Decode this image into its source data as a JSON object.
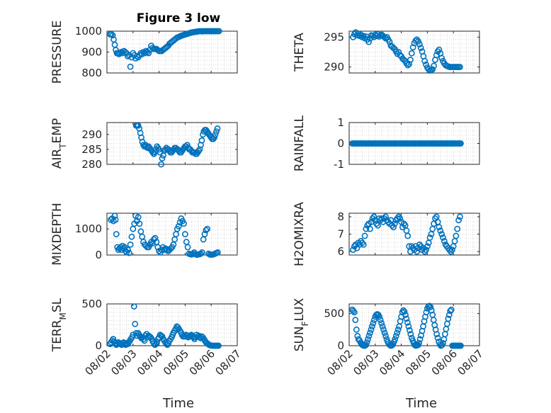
{
  "figure": {
    "title": "Figure 3 low",
    "color": "#0072BD"
  },
  "x_axis": {
    "label": "Time",
    "ticks": [
      0,
      1,
      2,
      3,
      4,
      5
    ],
    "tick_labels": [
      "08/02",
      "08/03",
      "08/04",
      "08/05",
      "08/06",
      "08/07"
    ],
    "unit": "days",
    "xlim": [
      0,
      5
    ]
  },
  "chart_data": [
    {
      "type": "scatter",
      "ylabel": "PRESSURE",
      "ylim": [
        800,
        1000
      ],
      "yticks": [
        800,
        900,
        1000
      ],
      "grid": true,
      "x": [
        0.12,
        0.17,
        0.22,
        0.26,
        0.3,
        0.34,
        0.38,
        0.42,
        0.46,
        0.5,
        0.55,
        0.6,
        0.65,
        0.7,
        0.75,
        0.8,
        0.85,
        0.9,
        0.95,
        1.0,
        1.05,
        1.1,
        1.15,
        1.2,
        1.25,
        1.3,
        1.35,
        1.4,
        1.45,
        1.5,
        1.55,
        1.6,
        1.65,
        1.7,
        1.75,
        1.8,
        1.85,
        1.9,
        1.95,
        2.0,
        2.05,
        2.1,
        2.15,
        2.2,
        2.25,
        2.3,
        2.35,
        2.4,
        2.45,
        2.5,
        2.55,
        2.6,
        2.65,
        2.7,
        2.75,
        2.8,
        2.85,
        2.9,
        2.95,
        3.0,
        3.05,
        3.1,
        3.15,
        3.2,
        3.25,
        3.3,
        3.35,
        3.4,
        3.45,
        3.5,
        3.55,
        3.6,
        3.65,
        3.7,
        3.75,
        3.8,
        3.85,
        3.9,
        3.95,
        4.0,
        4.05,
        4.1,
        4.15,
        4.2,
        4.25,
        4.3
      ],
      "y": [
        985,
        985,
        980,
        960,
        935,
        910,
        895,
        895,
        890,
        895,
        900,
        895,
        905,
        900,
        895,
        880,
        885,
        830,
        875,
        895,
        885,
        870,
        880,
        875,
        885,
        895,
        890,
        900,
        895,
        905,
        900,
        895,
        910,
        930,
        920,
        915,
        915,
        915,
        910,
        905,
        905,
        905,
        910,
        915,
        920,
        925,
        930,
        940,
        945,
        950,
        955,
        960,
        965,
        970,
        972,
        975,
        978,
        980,
        982,
        984,
        986,
        988,
        990,
        992,
        994,
        995,
        996,
        997,
        998,
        999,
        1000,
        1000,
        999,
        1000,
        1000,
        1000,
        1000,
        1000,
        1000,
        1000,
        1000,
        1000,
        1000,
        1000,
        1000,
        1000
      ]
    },
    {
      "type": "scatter",
      "ylabel": "THETA",
      "ylim": [
        289,
        296
      ],
      "yticks": [
        290,
        295
      ],
      "grid": true,
      "x": [
        0.15,
        0.2,
        0.25,
        0.3,
        0.35,
        0.4,
        0.45,
        0.5,
        0.55,
        0.6,
        0.65,
        0.7,
        0.75,
        0.8,
        0.85,
        0.9,
        0.95,
        1.0,
        1.05,
        1.1,
        1.15,
        1.2,
        1.25,
        1.3,
        1.35,
        1.4,
        1.45,
        1.5,
        1.55,
        1.6,
        1.65,
        1.7,
        1.75,
        1.8,
        1.85,
        1.9,
        1.95,
        2.0,
        2.05,
        2.1,
        2.15,
        2.2,
        2.25,
        2.3,
        2.35,
        2.4,
        2.45,
        2.5,
        2.55,
        2.6,
        2.65,
        2.7,
        2.75,
        2.8,
        2.85,
        2.9,
        2.95,
        3.0,
        3.05,
        3.1,
        3.15,
        3.2,
        3.25,
        3.3,
        3.35,
        3.4,
        3.45,
        3.5,
        3.55,
        3.6,
        3.65,
        3.7,
        3.75,
        3.8,
        3.85,
        3.9,
        3.95,
        4.0,
        4.05,
        4.1,
        4.15,
        4.2,
        4.25
      ],
      "y": [
        295,
        295.5,
        295.8,
        295.3,
        295.6,
        295.2,
        295.4,
        295,
        295.2,
        294.8,
        295.1,
        294.6,
        294.2,
        294.8,
        295.3,
        295.2,
        295,
        295.4,
        295.2,
        295.5,
        295.1,
        295.3,
        295.4,
        295.2,
        295,
        294.8,
        295,
        294.6,
        294.2,
        293.6,
        293.4,
        293.2,
        293,
        292.6,
        292.2,
        292.5,
        292,
        291.8,
        291.4,
        291.2,
        291,
        290.6,
        290.3,
        290.5,
        291.2,
        292.3,
        293.3,
        294,
        294.4,
        294.6,
        294.3,
        293.8,
        293.2,
        292.6,
        291.8,
        291,
        290.4,
        289.9,
        289.6,
        289.4,
        289.5,
        289.6,
        290.2,
        291.2,
        292,
        292.6,
        292.9,
        292.3,
        291.5,
        291,
        290.6,
        290.3,
        290.2,
        290.1,
        290,
        290,
        290,
        290,
        290,
        290,
        290,
        290,
        290
      ],
      "note_x_range_days": "series plotted through about 08/06"
    },
    {
      "type": "scatter",
      "ylabel": "AIR_TEMP",
      "ylim": [
        280,
        294
      ],
      "yticks": [
        280,
        285,
        290
      ],
      "grid": true,
      "x": [
        0.12,
        0.16,
        0.2,
        0.24,
        0.28,
        0.32,
        0.36,
        0.4,
        0.44,
        0.48,
        0.52,
        0.56,
        0.6,
        0.64,
        0.68,
        0.72,
        0.76,
        0.8,
        0.84,
        0.88,
        0.92,
        0.96,
        1.0,
        1.04,
        1.08,
        1.12,
        1.16,
        1.2,
        1.24,
        1.28,
        1.32,
        1.36,
        1.4,
        1.44,
        1.48,
        1.52,
        1.56,
        1.6,
        1.64,
        1.68,
        1.72,
        1.76,
        1.8,
        1.84,
        1.88,
        1.92,
        1.96,
        2.0,
        2.04,
        2.08,
        2.12,
        2.16,
        2.2,
        2.24,
        2.28,
        2.32,
        2.36,
        2.4,
        2.44,
        2.48,
        2.52,
        2.56,
        2.6,
        2.64,
        2.68,
        2.72,
        2.76,
        2.8,
        2.84,
        2.88,
        2.92,
        2.96,
        3.0,
        3.04,
        3.08,
        3.12,
        3.16,
        3.2,
        3.24
      ],
      "y": [
        293,
        293,
        293,
        292,
        290.5,
        289,
        287.5,
        286.5,
        286,
        286.5,
        286,
        285.5,
        286,
        285.5,
        285,
        284.5,
        284,
        283.5,
        284,
        285,
        286,
        285.5,
        285,
        284,
        280,
        282,
        283,
        284.5,
        285,
        285.5,
        285,
        285,
        284.5,
        284,
        284,
        284.5,
        285,
        285.5,
        285.5,
        285,
        285,
        284.5,
        284,
        284,
        284.5,
        285,
        285.5,
        286,
        286,
        286.5,
        285.5,
        285,
        285,
        284.5,
        284,
        284,
        284,
        283.5,
        283.5,
        284,
        284.5,
        285,
        286.5,
        288,
        290,
        291,
        291.5,
        291.5,
        291,
        290.5,
        290,
        289.5,
        289,
        288.5,
        288.5,
        289,
        290,
        291,
        292
      ],
      "plot_x_offset_days": 1.0
    },
    {
      "type": "scatter",
      "ylabel": "RAINFALL",
      "ylim": [
        -1,
        1
      ],
      "yticks": [
        -1,
        0,
        1
      ],
      "grid": true,
      "x_range": [
        0.12,
        4.3
      ],
      "y_constant": 0
    },
    {
      "type": "scatter",
      "ylabel": "MIXDEPTH",
      "ylim": [
        0,
        1600
      ],
      "yticks": [
        0,
        1000
      ],
      "grid": true,
      "x": [
        0.15,
        0.2,
        0.25,
        0.3,
        0.33,
        0.36,
        0.4,
        0.44,
        0.48,
        0.52,
        0.56,
        0.6,
        0.64,
        0.68,
        0.72,
        0.76,
        0.8,
        0.85,
        0.9,
        0.95,
        1.0,
        1.05,
        1.1,
        1.15,
        1.2,
        1.25,
        1.3,
        1.35,
        1.4,
        1.45,
        1.5,
        1.55,
        1.6,
        1.65,
        1.7,
        1.75,
        1.8,
        1.85,
        1.9,
        1.95,
        2.0,
        2.05,
        2.1,
        2.15,
        2.2,
        2.25,
        2.3,
        2.35,
        2.4,
        2.45,
        2.5,
        2.55,
        2.6,
        2.65,
        2.7,
        2.75,
        2.8,
        2.85,
        2.9,
        2.95,
        3.0,
        3.05,
        3.1,
        3.15,
        3.2,
        3.25,
        3.3,
        3.35,
        3.4,
        3.45,
        3.5,
        3.55,
        3.6,
        3.65,
        3.7,
        3.75,
        3.8,
        3.85,
        3.9,
        3.95,
        4.0,
        4.05,
        4.1,
        4.15,
        4.2,
        4.25
      ],
      "y": [
        1350,
        1400,
        1300,
        1500,
        1350,
        800,
        300,
        200,
        250,
        300,
        200,
        350,
        250,
        300,
        150,
        100,
        200,
        80,
        400,
        700,
        1000,
        1200,
        1500,
        1300,
        1450,
        1200,
        900,
        700,
        500,
        400,
        350,
        300,
        300,
        400,
        500,
        450,
        600,
        650,
        500,
        300,
        150,
        100,
        200,
        300,
        200,
        250,
        200,
        150,
        200,
        250,
        300,
        400,
        600,
        800,
        1000,
        1100,
        1250,
        1400,
        1300,
        1200,
        800,
        500,
        300,
        50,
        30,
        20,
        50,
        100,
        30,
        10,
        20,
        30,
        50,
        100,
        600,
        800,
        950,
        1000,
        50,
        20,
        10,
        20,
        30,
        50,
        80,
        100
      ],
      "plot_x_offset_days": 0.0
    },
    {
      "type": "scatter",
      "ylabel": "H2OMIXRA",
      "ylim": [
        5.8,
        8.2
      ],
      "yticks": [
        6,
        7,
        8
      ],
      "grid": true,
      "x": [
        0.15,
        0.2,
        0.25,
        0.3,
        0.35,
        0.4,
        0.45,
        0.5,
        0.55,
        0.6,
        0.65,
        0.7,
        0.75,
        0.8,
        0.85,
        0.9,
        0.95,
        1.0,
        1.05,
        1.1,
        1.15,
        1.2,
        1.25,
        1.3,
        1.35,
        1.4,
        1.45,
        1.5,
        1.55,
        1.6,
        1.65,
        1.7,
        1.75,
        1.8,
        1.85,
        1.9,
        1.95,
        2.0,
        2.05,
        2.1,
        2.15,
        2.2,
        2.25,
        2.3,
        2.35,
        2.4,
        2.45,
        2.5,
        2.55,
        2.6,
        2.65,
        2.7,
        2.75,
        2.8,
        2.85,
        2.9,
        2.95,
        3.0,
        3.05,
        3.1,
        3.15,
        3.2,
        3.25,
        3.3,
        3.35,
        3.4,
        3.45,
        3.5,
        3.55,
        3.6,
        3.65,
        3.7,
        3.75,
        3.8,
        3.85,
        3.9,
        3.95,
        4.0,
        4.05,
        4.1,
        4.15,
        4.2,
        4.25
      ],
      "y": [
        6.1,
        6.3,
        6.4,
        6.2,
        6.5,
        6.4,
        6.6,
        6.5,
        6.4,
        6.9,
        7.3,
        7.5,
        7.6,
        7.3,
        7.7,
        7.9,
        8.0,
        7.8,
        7.6,
        7.5,
        7.9,
        7.8,
        7.9,
        7.7,
        7.9,
        8.0,
        7.8,
        7.7,
        7.6,
        7.8,
        7.5,
        7.4,
        7.6,
        7.8,
        7.9,
        8.0,
        7.9,
        7.7,
        7.4,
        7.6,
        7.5,
        7.2,
        6.9,
        6.3,
        6.0,
        6.3,
        6.2,
        6.1,
        6.3,
        6.0,
        6.2,
        6.4,
        6.3,
        6.1,
        6.2,
        6.0,
        6.1,
        6.3,
        6.5,
        6.8,
        7.0,
        7.3,
        7.6,
        7.9,
        8.0,
        7.7,
        7.4,
        7.2,
        7.0,
        6.8,
        6.6,
        6.4,
        6.3,
        6.2,
        6.1,
        6.0,
        6.1,
        6.3,
        6.6,
        6.9,
        7.3,
        7.8,
        8.0
      ],
      "plot_x_offset_days": 0.0
    },
    {
      "type": "scatter",
      "ylabel": "TERR_MSL",
      "ylim": [
        0,
        500
      ],
      "yticks": [
        0,
        500
      ],
      "grid": true,
      "x": [
        0.12,
        0.16,
        0.2,
        0.24,
        0.28,
        0.32,
        0.36,
        0.4,
        0.44,
        0.48,
        0.52,
        0.56,
        0.6,
        0.64,
        0.68,
        0.72,
        0.76,
        0.8,
        0.84,
        0.88,
        0.92,
        0.96,
        1.0,
        1.04,
        1.08,
        1.12,
        1.16,
        1.2,
        1.24,
        1.28,
        1.32,
        1.36,
        1.4,
        1.44,
        1.48,
        1.52,
        1.56,
        1.6,
        1.64,
        1.68,
        1.72,
        1.76,
        1.8,
        1.84,
        1.88,
        1.92,
        1.96,
        2.0,
        2.04,
        2.08,
        2.12,
        2.16,
        2.2,
        2.24,
        2.28,
        2.32,
        2.36,
        2.4,
        2.44,
        2.48,
        2.52,
        2.56,
        2.6,
        2.64,
        2.68,
        2.72,
        2.76,
        2.8,
        2.84,
        2.88,
        2.92,
        2.96,
        3.0,
        3.04,
        3.08,
        3.12,
        3.16,
        3.2,
        3.24,
        3.28,
        3.32,
        3.36,
        3.4,
        3.44,
        3.48,
        3.52,
        3.56,
        3.6,
        3.64,
        3.68,
        3.72,
        3.76,
        3.8,
        3.84,
        3.88,
        3.92,
        3.96,
        4.0,
        4.04,
        4.08,
        4.12,
        4.16,
        4.2,
        4.24,
        4.28
      ],
      "y": [
        20,
        40,
        60,
        80,
        50,
        30,
        10,
        20,
        40,
        30,
        20,
        10,
        30,
        40,
        20,
        10,
        30,
        20,
        40,
        60,
        80,
        100,
        130,
        470,
        260,
        150,
        120,
        150,
        130,
        110,
        90,
        100,
        80,
        60,
        120,
        140,
        100,
        120,
        110,
        100,
        80,
        50,
        30,
        10,
        20,
        40,
        80,
        100,
        130,
        120,
        110,
        80,
        60,
        40,
        20,
        10,
        30,
        60,
        80,
        100,
        130,
        160,
        180,
        200,
        230,
        220,
        200,
        180,
        160,
        130,
        110,
        120,
        110,
        130,
        120,
        100,
        110,
        120,
        130,
        110,
        100,
        80,
        100,
        130,
        110,
        120,
        100,
        90,
        110,
        100,
        80,
        60,
        40,
        30,
        20,
        10,
        5,
        2,
        1,
        0,
        0,
        0,
        0,
        0,
        0
      ],
      "plot_x_offset_days": 0.0
    },
    {
      "type": "scatter",
      "ylabel": "SUN_FLUX",
      "ylim": [
        0,
        650
      ],
      "yticks": [
        0,
        500
      ],
      "grid": true,
      "x": [
        0.12,
        0.16,
        0.2,
        0.24,
        0.28,
        0.32,
        0.36,
        0.4,
        0.44,
        0.48,
        0.52,
        0.56,
        0.6,
        0.64,
        0.68,
        0.72,
        0.76,
        0.8,
        0.84,
        0.88,
        0.92,
        0.96,
        1.0,
        1.04,
        1.08,
        1.12,
        1.16,
        1.2,
        1.24,
        1.28,
        1.32,
        1.36,
        1.4,
        1.44,
        1.48,
        1.52,
        1.56,
        1.6,
        1.64,
        1.68,
        1.72,
        1.76,
        1.8,
        1.84,
        1.88,
        1.92,
        1.96,
        2.0,
        2.04,
        2.08,
        2.12,
        2.16,
        2.2,
        2.24,
        2.28,
        2.32,
        2.36,
        2.4,
        2.44,
        2.48,
        2.52,
        2.56,
        2.6,
        2.64,
        2.68,
        2.72,
        2.76,
        2.8,
        2.84,
        2.88,
        2.92,
        2.96,
        3.0,
        3.04,
        3.08,
        3.12,
        3.16,
        3.2,
        3.24,
        3.28,
        3.32,
        3.36,
        3.4,
        3.44,
        3.48,
        3.52,
        3.56,
        3.6,
        3.64,
        3.68,
        3.72,
        3.76,
        3.8,
        3.84,
        3.88,
        3.92,
        3.96,
        4.0,
        4.04,
        4.08,
        4.12,
        4.16,
        4.2,
        4.24,
        4.28
      ],
      "y": [
        560,
        540,
        520,
        400,
        250,
        150,
        100,
        80,
        50,
        20,
        10,
        0,
        0,
        10,
        50,
        100,
        150,
        200,
        250,
        300,
        350,
        400,
        450,
        480,
        490,
        480,
        450,
        400,
        350,
        300,
        250,
        200,
        150,
        100,
        60,
        30,
        10,
        0,
        5,
        20,
        60,
        100,
        150,
        200,
        250,
        300,
        380,
        450,
        520,
        550,
        530,
        480,
        420,
        360,
        300,
        240,
        180,
        120,
        80,
        40,
        10,
        0,
        5,
        10,
        40,
        100,
        160,
        230,
        300,
        380,
        450,
        520,
        580,
        610,
        620,
        600,
        550,
        480,
        400,
        320,
        250,
        180,
        120,
        60,
        20,
        0,
        10,
        40,
        100,
        180,
        260,
        340,
        420,
        480,
        540,
        560,
        0,
        0,
        0,
        0,
        0,
        0,
        0,
        0,
        0
      ],
      "plot_x_offset_days": 0.0
    }
  ]
}
